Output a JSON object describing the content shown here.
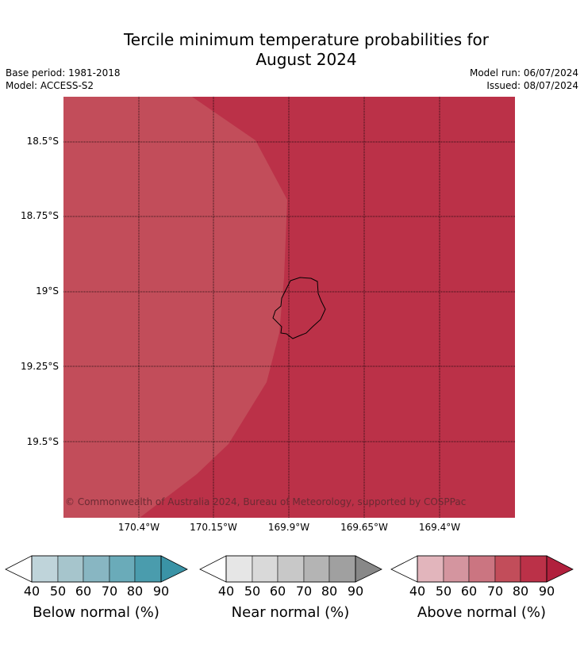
{
  "title_line1": "Tercile minimum temperature probabilities for",
  "title_line2": "August 2024",
  "meta": {
    "base_period": "Base period: 1981-2018",
    "model": "Model: ACCESS-S2",
    "model_run": "Model run: 06/07/2024",
    "issued": "Issued: 08/07/2024"
  },
  "map": {
    "lat_labels": [
      "18.5°S",
      "18.75°S",
      "19°S",
      "19.25°S",
      "19.5°S"
    ],
    "lon_labels": [
      "170.4°W",
      "170.15°W",
      "169.9°W",
      "169.65°W",
      "169.4°W"
    ],
    "copyright": "© Commonwealth of Australia 2024, Bureau of Meteorology, supported by COSPPac",
    "fill_colors": {
      "category_70_80": "#c24d5a",
      "category_80_90": "#bb3148"
    }
  },
  "legends": [
    {
      "label": "Below normal (%)",
      "ticks": [
        "40",
        "50",
        "60",
        "70",
        "80",
        "90"
      ],
      "colors": [
        "#bfd4da",
        "#a6c5cc",
        "#88b6c2",
        "#6aabb9",
        "#4a9cad"
      ],
      "extend": "#3a93a6"
    },
    {
      "label": "Near normal (%)",
      "ticks": [
        "40",
        "50",
        "60",
        "70",
        "80",
        "90"
      ],
      "colors": [
        "#e6e6e6",
        "#d9d9d9",
        "#c8c8c8",
        "#b4b4b4",
        "#a0a0a0"
      ],
      "extend": "#888888"
    },
    {
      "label": "Above normal (%)",
      "ticks": [
        "40",
        "50",
        "60",
        "70",
        "80",
        "90"
      ],
      "colors": [
        "#e2b5bc",
        "#d4959f",
        "#cb7581",
        "#c24d5a",
        "#bb3148"
      ],
      "extend": "#b1203d"
    }
  ]
}
